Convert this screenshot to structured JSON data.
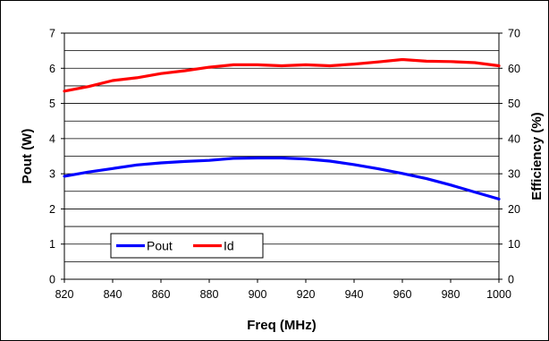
{
  "chart_data": {
    "type": "line",
    "title": "",
    "xlabel": "Freq (MHz)",
    "ylabel": "Pout (W)",
    "y2label": "Efficiency (%)",
    "xlim": [
      820,
      1000
    ],
    "ylim": [
      0,
      7
    ],
    "y2lim": [
      0,
      70
    ],
    "xticks": [
      820,
      840,
      860,
      880,
      900,
      920,
      940,
      960,
      980,
      1000
    ],
    "yticks": [
      0,
      1,
      2,
      3,
      4,
      5,
      6,
      7
    ],
    "y2ticks": [
      0,
      10,
      20,
      30,
      40,
      50,
      60,
      70
    ],
    "grid": "horizontal",
    "legend_position": "lower-left",
    "x": [
      820,
      830,
      840,
      850,
      860,
      870,
      880,
      890,
      900,
      910,
      920,
      930,
      940,
      950,
      960,
      970,
      980,
      990,
      1000
    ],
    "series": [
      {
        "name": "Pout",
        "axis": "left",
        "color": "#0000ff",
        "values": [
          2.93,
          3.05,
          3.15,
          3.25,
          3.31,
          3.35,
          3.38,
          3.44,
          3.45,
          3.45,
          3.42,
          3.36,
          3.26,
          3.14,
          3.01,
          2.86,
          2.68,
          2.48,
          2.28
        ]
      },
      {
        "name": "Id",
        "axis": "right",
        "color": "#ff0000",
        "values": [
          53.5,
          54.8,
          56.5,
          57.3,
          58.5,
          59.3,
          60.3,
          61.0,
          61.0,
          60.7,
          61.0,
          60.7,
          61.2,
          61.8,
          62.5,
          62.0,
          61.9,
          61.6,
          60.7
        ]
      }
    ]
  }
}
